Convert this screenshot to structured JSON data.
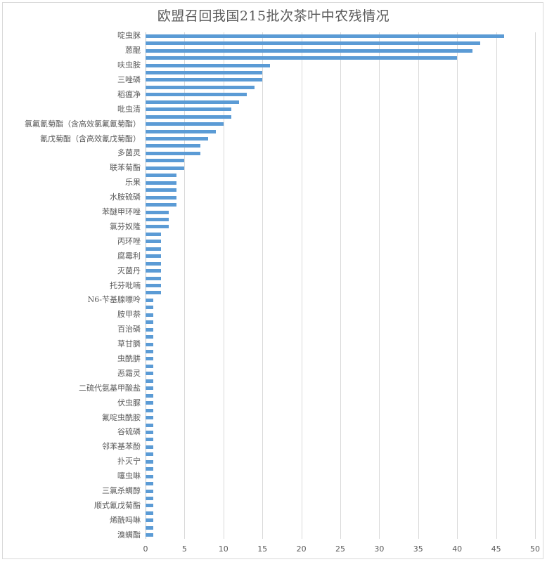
{
  "chart_data": {
    "type": "bar",
    "orientation": "horizontal",
    "title": "欧盟召回我国215批次茶叶中农残情况",
    "xlabel": "",
    "ylabel": "",
    "xlim": [
      0,
      50
    ],
    "xticks": [
      0,
      5,
      10,
      15,
      20,
      25,
      30,
      35,
      40,
      45,
      50
    ],
    "grid": true,
    "legend": null,
    "bar_color": "#5b9bd5",
    "label_every": 2,
    "categories": [
      "啶虫脒",
      "",
      "蒽醌",
      "",
      "呋虫胺",
      "",
      "三唑磷",
      "",
      "稻瘟净",
      "",
      "吡虫清",
      "",
      "氯氟氰菊酯（含高效氯氟氰菊酯）",
      "",
      "氰戊菊酯（含高效氰戊菊酯）",
      "",
      "多菌灵",
      "",
      "联苯菊酯",
      "",
      "乐果",
      "",
      "水胺硫磷",
      "",
      "苯醚甲环唑",
      "",
      "氯芬奴隆",
      "",
      "丙环唑",
      "",
      "腐霉利",
      "",
      "灭菌丹",
      "",
      "托芬吡喃",
      "",
      "N6-苄基腺嘌呤",
      "",
      "胺甲萘",
      "",
      "百治磷",
      "",
      "草甘膦",
      "",
      "虫酰肼",
      "",
      "恶霜灵",
      "",
      "二硫代氨基甲酸盐",
      "",
      "伏虫脲",
      "",
      "氟啶虫酰胺",
      "",
      "谷硫磷",
      "",
      "邻苯基苯酚",
      "",
      "扑灭宁",
      "",
      "噻虫啉",
      "",
      "三氯杀螨醇",
      "",
      "顺式氰戊菊酯",
      "",
      "烯酰吗啉",
      "",
      "溴螨酯"
    ],
    "values": [
      46,
      43,
      42,
      40,
      16,
      15,
      15,
      14,
      13,
      12,
      11,
      11,
      10,
      9,
      8,
      7,
      7,
      5,
      5,
      4,
      4,
      4,
      4,
      4,
      3,
      3,
      3,
      2,
      2,
      2,
      2,
      2,
      2,
      2,
      2,
      2,
      1,
      1,
      1,
      1,
      1,
      1,
      1,
      1,
      1,
      1,
      1,
      1,
      1,
      1,
      1,
      1,
      1,
      1,
      1,
      1,
      1,
      1,
      1,
      1,
      1,
      1,
      1,
      1,
      1,
      1,
      1,
      1,
      1
    ]
  }
}
